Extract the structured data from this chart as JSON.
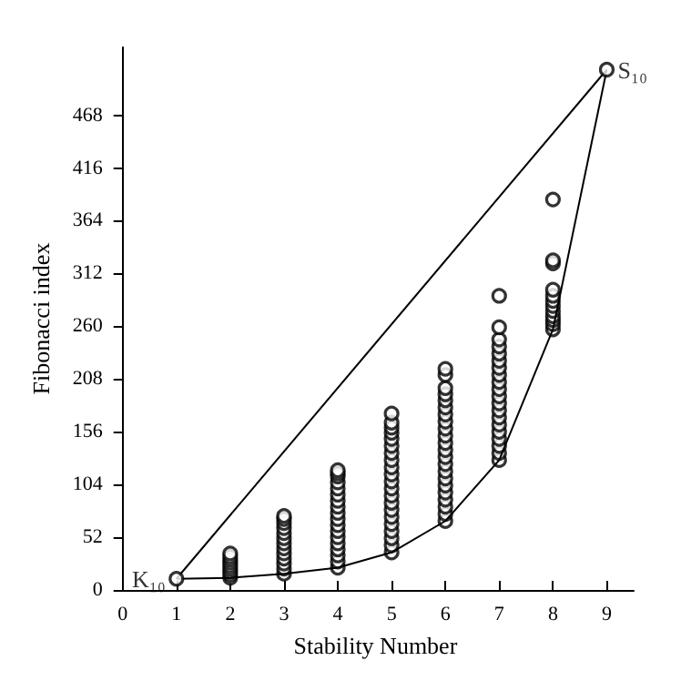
{
  "chart_data": {
    "type": "scatter",
    "xlabel": "Stability Number",
    "ylabel": "Fibonacci index",
    "xlim": [
      -0.1,
      9.5
    ],
    "ylim": [
      0,
      535
    ],
    "xticks": [
      0,
      1,
      2,
      3,
      4,
      5,
      6,
      7,
      8,
      9
    ],
    "yticks": [
      0,
      52,
      104,
      156,
      208,
      260,
      312,
      364,
      416,
      468
    ],
    "grid": false,
    "series": [
      {
        "color": "#000000",
        "marker": "circle",
        "x": [
          2,
          2,
          2,
          2,
          2,
          2,
          2,
          2,
          2,
          3,
          3,
          3,
          3,
          3,
          3,
          3,
          3,
          3,
          3,
          3,
          3,
          3,
          4,
          4,
          4,
          4,
          4,
          4,
          4,
          4,
          4,
          4,
          4,
          4,
          4,
          4,
          4,
          4,
          4,
          4,
          5,
          5,
          5,
          5,
          5,
          5,
          5,
          5,
          5,
          5,
          5,
          5,
          5,
          5,
          5,
          5,
          5,
          5,
          5,
          5,
          5,
          6,
          6,
          6,
          6,
          6,
          6,
          6,
          6,
          6,
          6,
          6,
          6,
          6,
          6,
          6,
          6,
          6,
          6,
          6,
          6,
          6,
          6,
          7,
          7,
          7,
          7,
          7,
          7,
          7,
          7,
          7,
          7,
          7,
          7,
          7,
          7,
          7,
          7,
          7,
          7,
          7,
          7,
          8,
          8,
          8,
          8,
          8,
          8,
          8,
          8,
          8,
          8,
          8,
          8
        ],
        "values": [
          12,
          15,
          18,
          21,
          24,
          27,
          30,
          33,
          36,
          16,
          21,
          26,
          31,
          36,
          41,
          46,
          51,
          56,
          61,
          66,
          70,
          73,
          22,
          28,
          34,
          40,
          46,
          52,
          58,
          64,
          70,
          76,
          82,
          88,
          94,
          100,
          106,
          112,
          115,
          118,
          37,
          44,
          51,
          58,
          65,
          72,
          79,
          86,
          93,
          100,
          107,
          114,
          121,
          128,
          135,
          142,
          149,
          155,
          160,
          165,
          174,
          68,
          75,
          82,
          89,
          96,
          103,
          110,
          117,
          124,
          131,
          138,
          145,
          152,
          159,
          166,
          173,
          180,
          187,
          193,
          199,
          212,
          218,
          128,
          135,
          142,
          149,
          156,
          163,
          170,
          177,
          184,
          191,
          198,
          205,
          212,
          219,
          226,
          233,
          240,
          247,
          259,
          290,
          257,
          262,
          266,
          270,
          275,
          280,
          285,
          290,
          296,
          322,
          325,
          385
        ]
      },
      {
        "type": "line",
        "color": "#000000",
        "marker": "none",
        "line_style": "solid",
        "x": [
          1,
          2,
          3,
          4,
          5,
          6,
          7,
          8,
          9
        ],
        "values": [
          11,
          12,
          16,
          22,
          37,
          68,
          128,
          257,
          513
        ]
      },
      {
        "type": "line",
        "color": "#000000",
        "marker": "none",
        "line_style": "solid",
        "x": [
          1,
          9
        ],
        "values": [
          11,
          513
        ]
      },
      {
        "color": "#000000",
        "marker": "circle",
        "x": [
          1,
          9
        ],
        "values": [
          11,
          513
        ]
      }
    ],
    "annotations": [
      {
        "text": "K₁₀",
        "x": 1,
        "y": 11
      },
      {
        "text": "S₁₀",
        "x": 9,
        "y": 513
      }
    ]
  }
}
